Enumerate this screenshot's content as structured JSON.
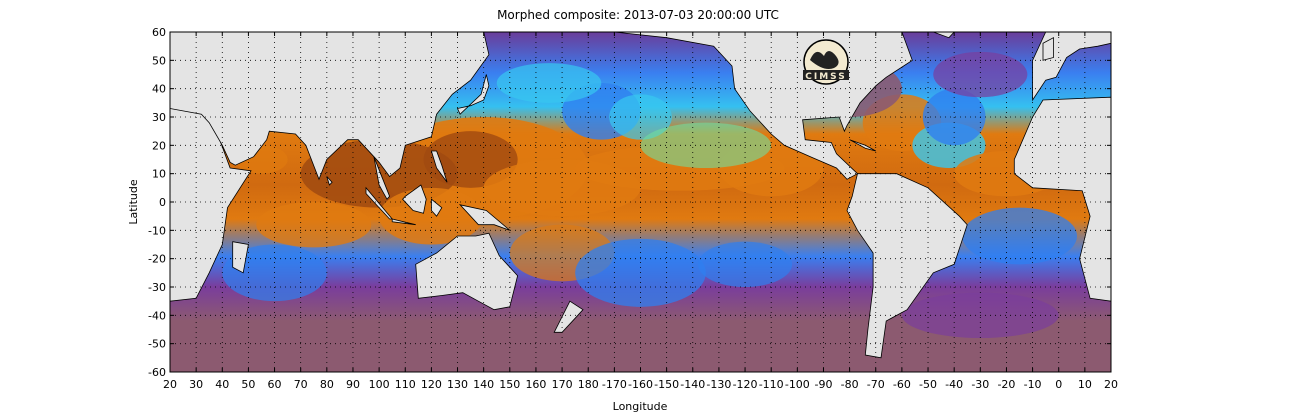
{
  "title": "Morphed composite: 2013-07-03 20:00:00 UTC",
  "logo_text": "CIMSS",
  "chart_data": {
    "type": "heatmap",
    "title": "Morphed composite: 2013-07-03 20:00:00 UTC",
    "xlabel": "Longitude",
    "ylabel": "Latitude",
    "x_tick_labels": [
      "20",
      "30",
      "40",
      "50",
      "60",
      "70",
      "80",
      "90",
      "100",
      "110",
      "120",
      "130",
      "140",
      "150",
      "160",
      "170",
      "180",
      "-170",
      "-160",
      "-150",
      "-140",
      "-130",
      "-120",
      "-110",
      "-100",
      "-90",
      "-80",
      "-70",
      "-60",
      "-50",
      "-40",
      "-30",
      "-20",
      "-10",
      "0",
      "10",
      "20"
    ],
    "y_tick_labels": [
      "60",
      "50",
      "40",
      "30",
      "20",
      "10",
      "0",
      "-10",
      "-20",
      "-30",
      "-40",
      "-50",
      "-60"
    ],
    "xlim": [
      20,
      380
    ],
    "ylim": [
      -60,
      60
    ],
    "grid": true,
    "colors": {
      "land": "#e4e4e4",
      "dry_ocean": "#8c5a70",
      "purple": "#7a3d9c",
      "blue": "#2f7ff0",
      "cyan": "#37c8f0",
      "green": "#6ee0a0",
      "yellow": "#e8d030",
      "orange": "#e07a10",
      "dark_orange": "#a04a10"
    }
  }
}
